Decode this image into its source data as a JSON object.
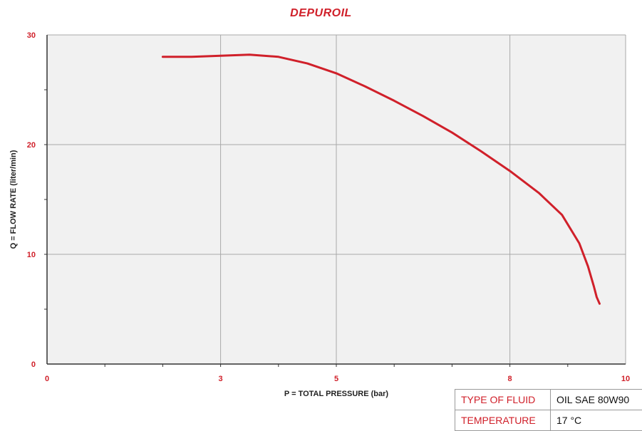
{
  "chart_data": {
    "type": "line",
    "title": "DEPUROIL",
    "xlabel": "P = TOTAL PRESSURE (bar)",
    "ylabel": "Q = FLOW RATE (liter/min)",
    "xlim": [
      0,
      10
    ],
    "ylim": [
      0,
      30
    ],
    "x_ticks": [
      0,
      3,
      5,
      8,
      10
    ],
    "y_ticks": [
      0,
      10,
      20,
      30
    ],
    "grid": true,
    "line_color": "#d0202a",
    "background": "#f1f1f1",
    "series": [
      {
        "x": [
          2.0,
          2.5,
          3.0,
          3.5,
          4.0,
          4.5,
          5.0,
          5.5,
          6.0,
          6.5,
          7.0,
          7.5,
          8.0,
          8.5,
          8.9,
          9.2,
          9.35,
          9.45,
          9.5,
          9.55
        ],
        "y": [
          28.0,
          28.0,
          28.1,
          28.2,
          28.0,
          27.4,
          26.5,
          25.3,
          24.0,
          22.6,
          21.1,
          19.4,
          17.6,
          15.6,
          13.6,
          11.0,
          8.9,
          7.1,
          6.1,
          5.5
        ]
      }
    ]
  },
  "fluid_table": [
    {
      "label": "TYPE OF FLUID",
      "value": "OIL SAE 80W90"
    },
    {
      "label": "TEMPERATURE",
      "value": "17 °C"
    }
  ]
}
